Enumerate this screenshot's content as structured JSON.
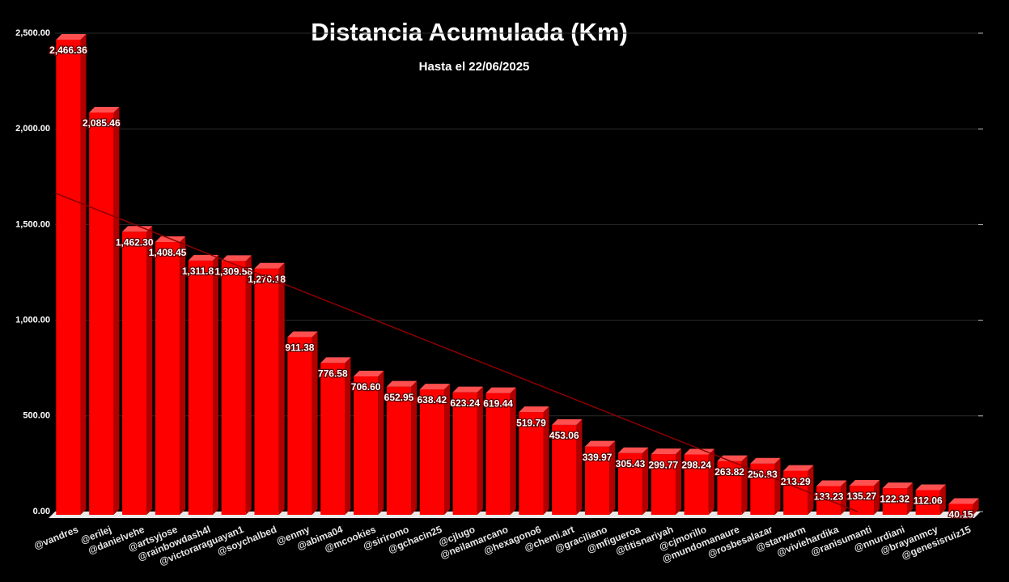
{
  "chart_data": {
    "type": "bar3d",
    "title": "Distancia Acumulada (Km)",
    "subtitle": "Hasta el 22/06/2025",
    "categories": [
      "@vandres",
      "@erilej",
      "@danielvehe",
      "@artsyjose",
      "@rainbowdash4l",
      "@victoraraguayan1",
      "@soychalbed",
      "@enmy",
      "@abima04",
      "@mcookies",
      "@siriromo",
      "@gchacin25",
      "@cjlugo",
      "@neilamarcano",
      "@hexagono6",
      "@chemi.art",
      "@graciliano",
      "@mfigueroa",
      "@titisnariyah",
      "@cjmorillo",
      "@mundomanaure",
      "@rosbesalazar",
      "@starwarm",
      "@viviehardika",
      "@ranisumanti",
      "@nnurdiani",
      "@brayanmcy",
      "@genesisruiz15"
    ],
    "values": [
      2466.36,
      2085.46,
      1462.3,
      1408.45,
      1311.81,
      1309.58,
      1270.18,
      911.38,
      776.58,
      706.6,
      652.95,
      638.42,
      623.24,
      619.44,
      519.79,
      453.06,
      339.97,
      305.43,
      299.77,
      298.24,
      263.82,
      250.83,
      213.29,
      133.23,
      135.27,
      122.32,
      112.06,
      40.15
    ],
    "value_labels": [
      "2,466.36",
      "2,085.46",
      "1,462.30",
      "1,408.45",
      "1,311.81",
      "1,309.58",
      "1,270.18",
      "911.38",
      "776.58",
      "706.60",
      "652.95",
      "638.42",
      "623.24",
      "619.44",
      "519.79",
      "453.06",
      "339.97",
      "305.43",
      "299.77",
      "298.24",
      "263.82",
      "250.83",
      "213.29",
      "133.23",
      "135.27",
      "122.32",
      "112.06",
      "40.15"
    ],
    "color": "#ff0000",
    "ylim": [
      0,
      2500
    ],
    "yticks": [
      {
        "value": 0,
        "label": "0.00"
      },
      {
        "value": 500,
        "label": "500.00"
      },
      {
        "value": 1000,
        "label": "1,000.00"
      },
      {
        "value": 1500,
        "label": "1,500.00"
      },
      {
        "value": 2000,
        "label": "2,000.00"
      },
      {
        "value": 2500,
        "label": "2,500.00"
      }
    ],
    "grid": true,
    "trendline": true
  }
}
